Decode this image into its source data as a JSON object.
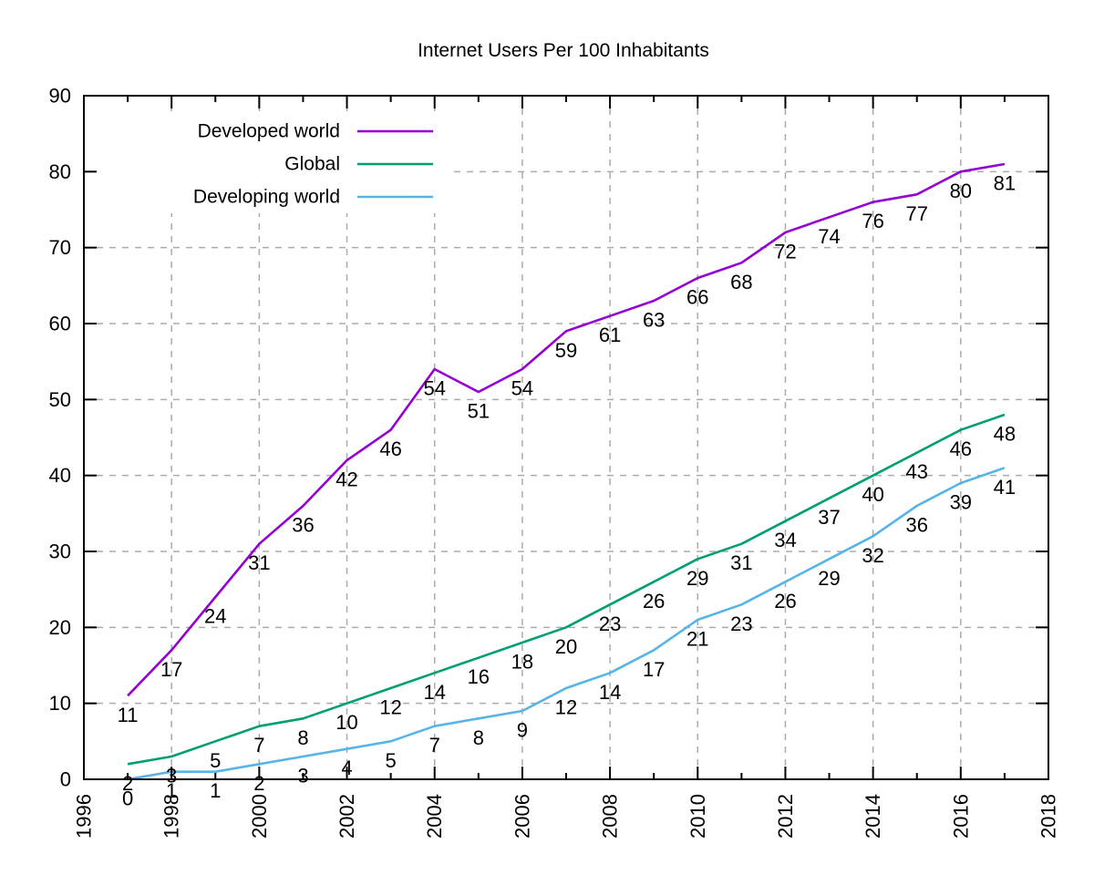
{
  "chart_data": {
    "type": "line",
    "title": "Internet Users Per 100 Inhabitants",
    "x": [
      1997,
      1998,
      1999,
      2000,
      2001,
      2002,
      2003,
      2004,
      2005,
      2006,
      2007,
      2008,
      2009,
      2010,
      2011,
      2012,
      2013,
      2014,
      2015,
      2016,
      2017
    ],
    "series": [
      {
        "name": "Developed world",
        "color": "#9400d3",
        "values": [
          11,
          17,
          24,
          31,
          36,
          42,
          46,
          54,
          51,
          54,
          59,
          61,
          63,
          66,
          68,
          72,
          74,
          76,
          77,
          80,
          81
        ]
      },
      {
        "name": "Global",
        "color": "#009e73",
        "values": [
          2,
          3,
          5,
          7,
          8,
          10,
          12,
          14,
          16,
          18,
          20,
          23,
          26,
          29,
          31,
          34,
          37,
          40,
          43,
          46,
          48
        ]
      },
      {
        "name": "Developing world",
        "color": "#56b4e9",
        "values": [
          0,
          1,
          1,
          2,
          3,
          4,
          5,
          7,
          8,
          9,
          12,
          14,
          17,
          21,
          23,
          26,
          29,
          32,
          36,
          39,
          41
        ]
      }
    ],
    "xlim": [
      1996,
      2018
    ],
    "ylim": [
      0,
      90
    ],
    "x_ticks": [
      1996,
      1998,
      2000,
      2002,
      2004,
      2006,
      2008,
      2010,
      2012,
      2014,
      2016,
      2018
    ],
    "x_minor_ticks": [
      1997,
      1999,
      2001,
      2003,
      2005,
      2007,
      2009,
      2011,
      2013,
      2015,
      2017
    ],
    "y_ticks": [
      0,
      10,
      20,
      30,
      40,
      50,
      60,
      70,
      80,
      90
    ],
    "grid": true,
    "grid_color": "#ababab",
    "axis_color": "#000000",
    "legend_position": "top-left",
    "data_labels": true,
    "xlabel": "",
    "ylabel": ""
  }
}
